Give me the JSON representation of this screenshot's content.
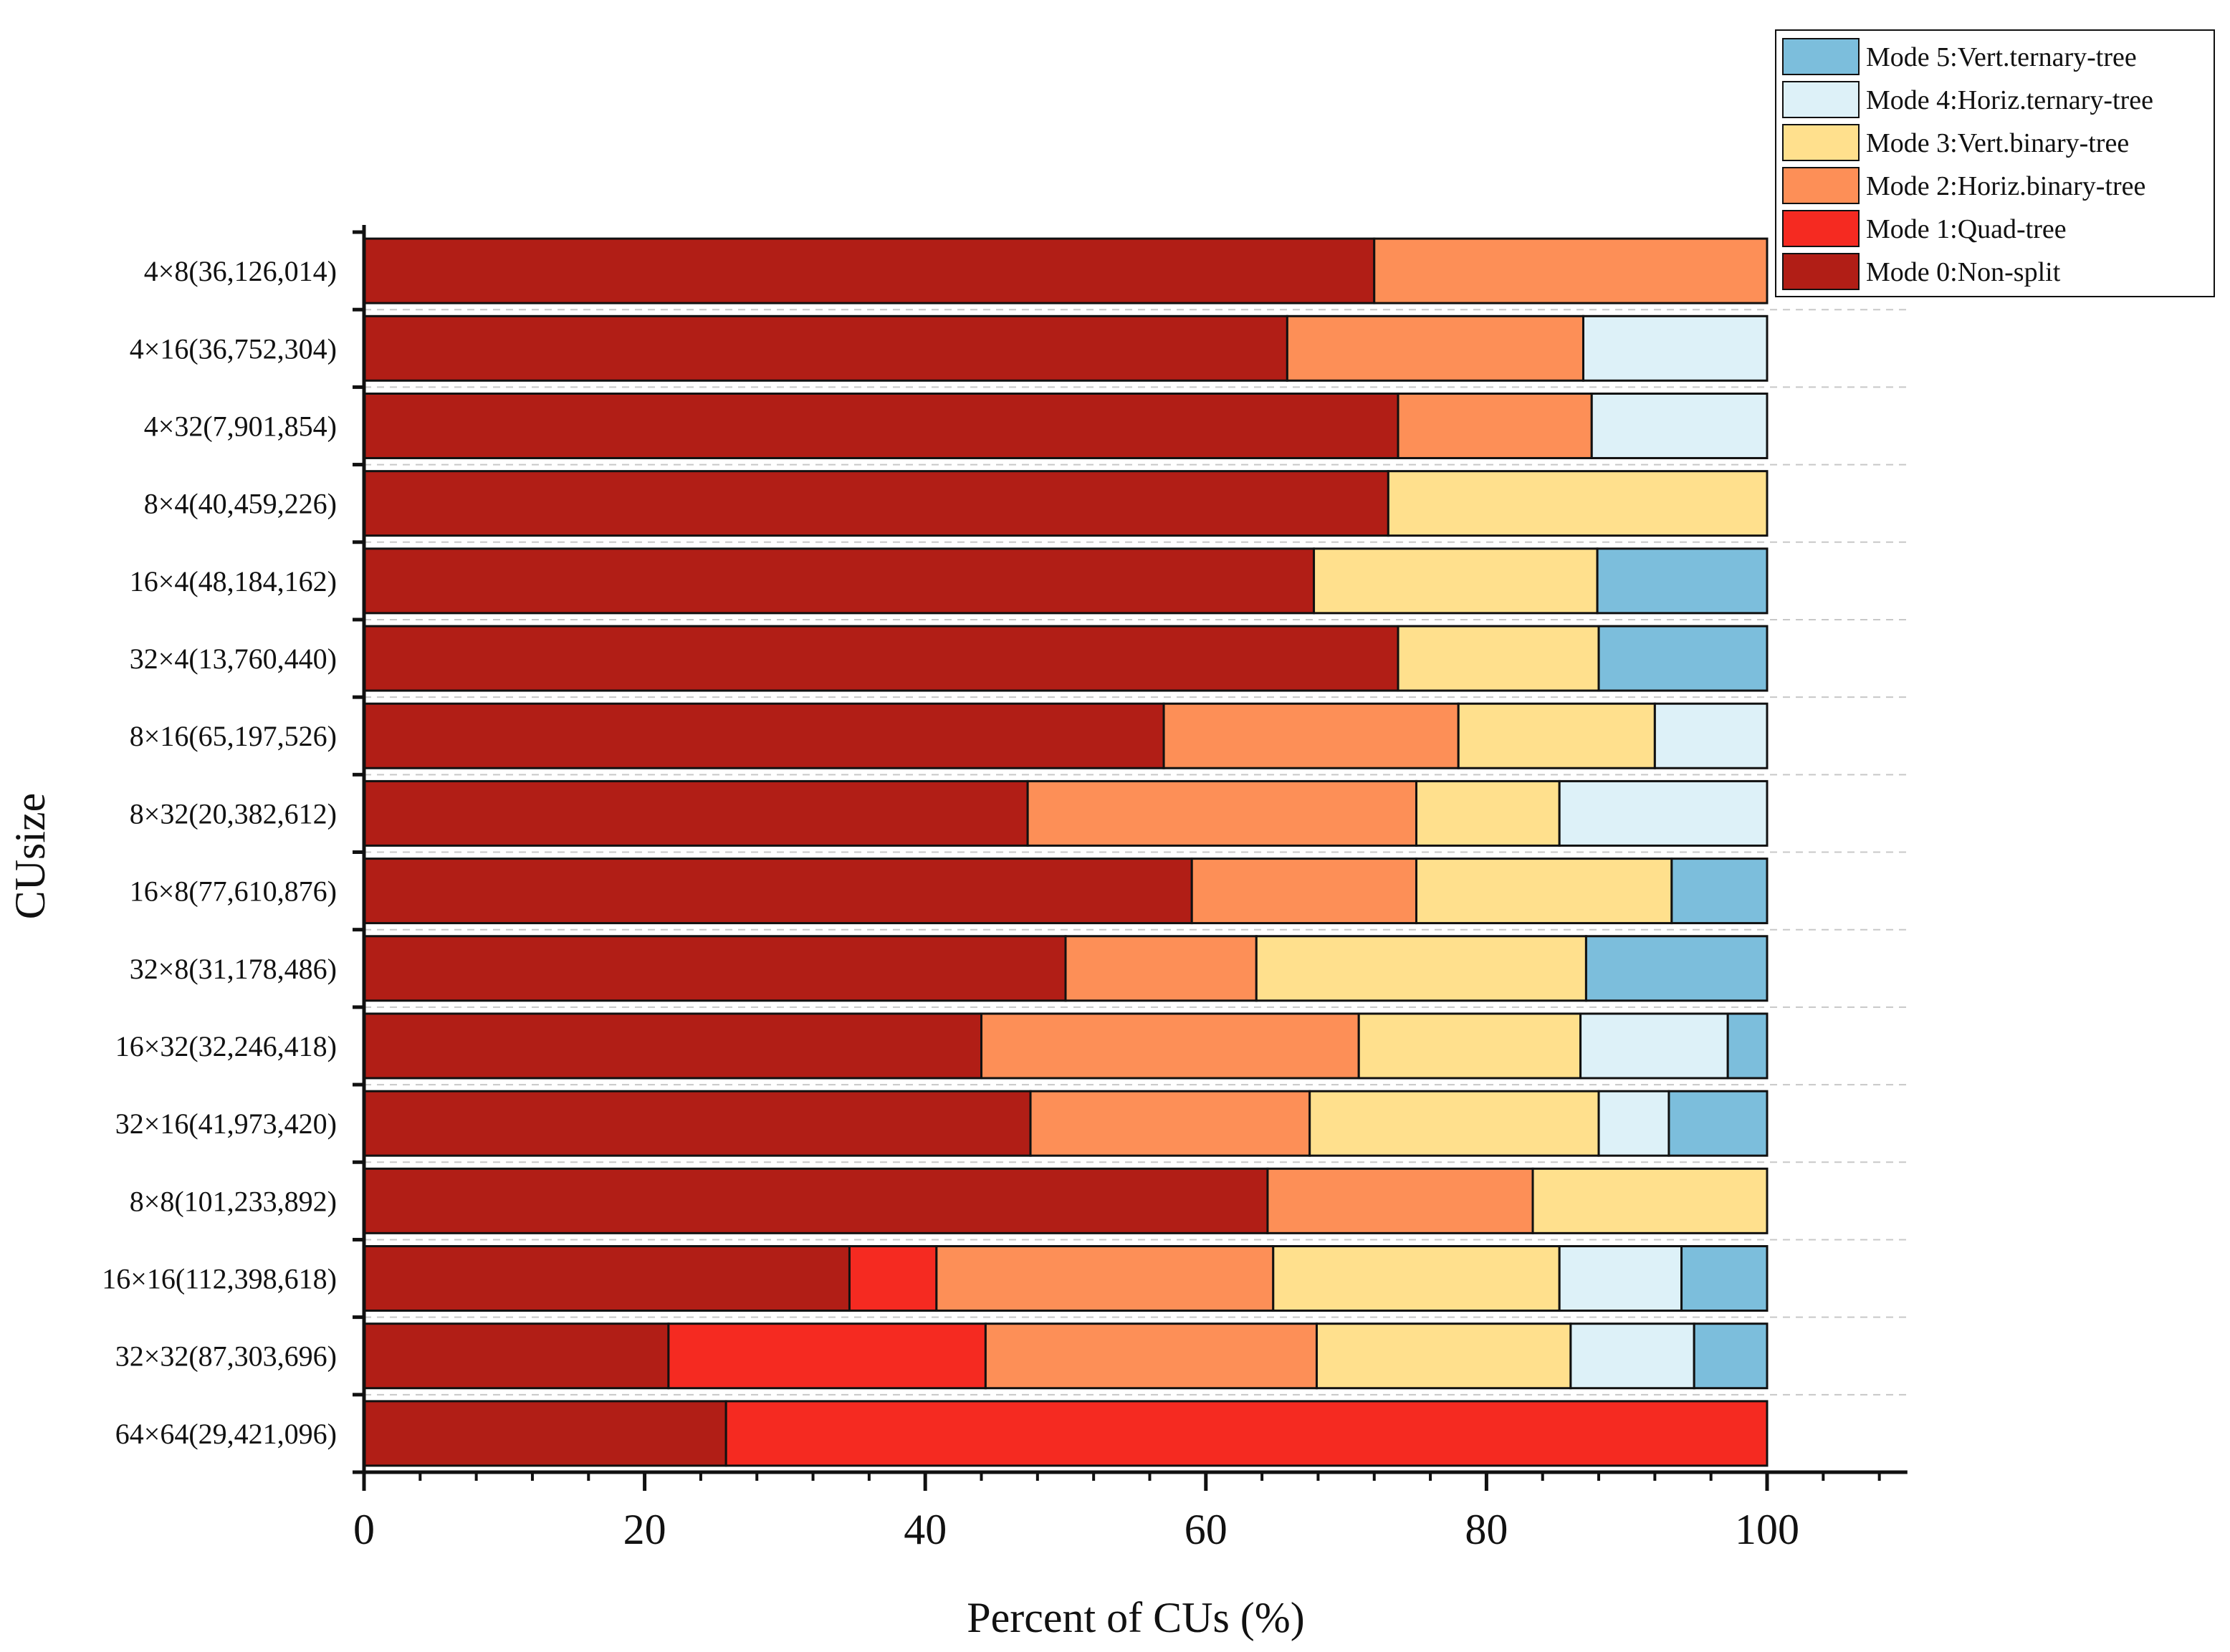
{
  "chart_data": {
    "type": "bar",
    "orientation": "horizontal",
    "stacked": true,
    "title": "",
    "xlabel": "Percent of CUs (%)",
    "ylabel": "CUsize",
    "xlim": [
      0,
      110
    ],
    "xticks": [
      0,
      20,
      40,
      60,
      80,
      100
    ],
    "xtick_labels": [
      "0",
      "20",
      "40",
      "60",
      "80",
      "100"
    ],
    "grid": "horizontal dashed",
    "legend_position": "top-right",
    "categories": [
      "4×8(36,126,014)",
      "4×16(36,752,304)",
      "4×32(7,901,854)",
      "8×4(40,459,226)",
      "16×4(48,184,162)",
      "32×4(13,760,440)",
      "8×16(65,197,526)",
      "8×32(20,382,612)",
      "16×8(77,610,876)",
      "32×8(31,178,486)",
      "16×32(32,246,418)",
      "32×16(41,973,420)",
      "8×8(101,233,892)",
      "16×16(112,398,618)",
      "32×32(87,303,696)",
      "64×64(29,421,096)"
    ],
    "series": [
      {
        "name": "Mode 0:Non-split",
        "color": "#B11E16",
        "values": [
          72,
          65.8,
          73.7,
          73,
          67.7,
          73.7,
          57,
          47.3,
          59,
          50,
          44,
          47.5,
          64.4,
          34.6,
          21.7,
          25.8
        ]
      },
      {
        "name": "Mode 1:Quad-tree",
        "color": "#F52A21",
        "values": [
          0,
          0,
          0,
          0,
          0,
          0,
          0,
          0,
          0,
          0,
          0,
          0,
          0,
          6.2,
          22.6,
          74.2
        ]
      },
      {
        "name": "Mode 2:Horiz.binary-tree",
        "color": "#FD8F57",
        "values": [
          28,
          21.1,
          13.8,
          0,
          0,
          0,
          21,
          27.7,
          16,
          13.6,
          26.9,
          19.9,
          18.9,
          24,
          23.6,
          0
        ]
      },
      {
        "name": "Mode 3:Vert.binary-tree",
        "color": "#FFE08D",
        "values": [
          0,
          0,
          0,
          27,
          20.2,
          14.3,
          14,
          10.2,
          18.2,
          23.5,
          15.8,
          20.6,
          16.7,
          20.4,
          18.1,
          0
        ]
      },
      {
        "name": "Mode 4:Horiz.ternary-tree",
        "color": "#DDF1F8",
        "values": [
          0,
          13.1,
          12.5,
          0,
          0,
          0,
          8,
          14.8,
          0,
          0,
          10.5,
          5,
          0,
          8.7,
          8.8,
          0
        ]
      },
      {
        "name": "Mode 5:Vert.ternary-tree",
        "color": "#7CBEDC",
        "values": [
          0,
          0,
          0,
          0,
          12.1,
          12,
          0,
          0,
          6.8,
          12.9,
          2.8,
          7,
          0,
          6.1,
          5.2,
          0
        ]
      }
    ]
  }
}
